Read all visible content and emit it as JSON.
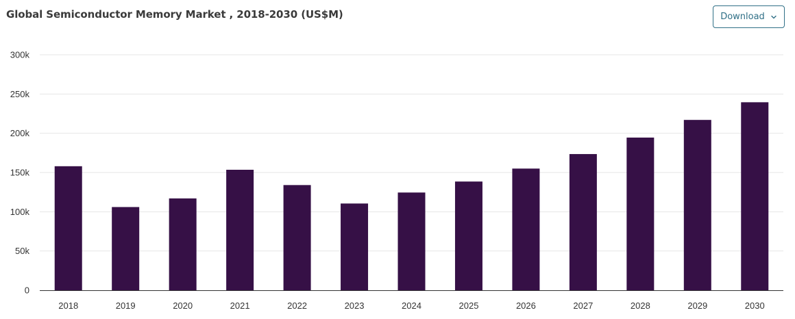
{
  "header": {
    "title": "Global Semiconductor Memory Market , 2018-2030 (US$M)",
    "download_label": "Download"
  },
  "colors": {
    "bar": "#361046",
    "grid": "#e6e6e6",
    "axis": "#333333",
    "button": "#2f6f86"
  },
  "icons": {
    "download_chevron": "chevron-down-icon"
  },
  "chart_data": {
    "type": "bar",
    "title": "Global Semiconductor Memory Market , 2018-2030 (US$M)",
    "xlabel": "",
    "ylabel": "",
    "categories": [
      "2018",
      "2019",
      "2020",
      "2021",
      "2022",
      "2023",
      "2024",
      "2025",
      "2026",
      "2027",
      "2028",
      "2029",
      "2030"
    ],
    "values": [
      158000,
      106000,
      117000,
      153500,
      134000,
      110500,
      124500,
      138500,
      155000,
      173500,
      194500,
      217000,
      239500
    ],
    "ylim": [
      0,
      300000
    ],
    "yticks": [
      0,
      50000,
      100000,
      150000,
      200000,
      250000,
      300000
    ],
    "ytick_labels": [
      "0",
      "50k",
      "100k",
      "150k",
      "200k",
      "250k",
      "300k"
    ],
    "grid": true,
    "legend": "none"
  }
}
